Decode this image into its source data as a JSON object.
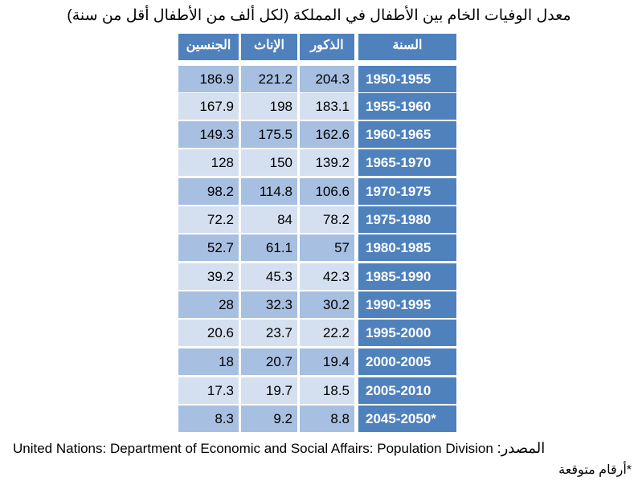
{
  "title": "معدل الوفيات الخام بين الأطفال في المملكة (لكل ألف من الأطفال أقل من سنة)",
  "headers": {
    "both": "الجنسين",
    "female": "الإناث",
    "male": "الذكور",
    "year": "السنة"
  },
  "rows": [
    {
      "both": "186.9",
      "female": "221.2",
      "male": "204.3",
      "year": "1950-1955"
    },
    {
      "both": "167.9",
      "female": "198",
      "male": "183.1",
      "year": "1955-1960"
    },
    {
      "both": "149.3",
      "female": "175.5",
      "male": "162.6",
      "year": "1960-1965"
    },
    {
      "both": "128",
      "female": "150",
      "male": "139.2",
      "year": "1965-1970"
    },
    {
      "both": "98.2",
      "female": "114.8",
      "male": "106.6",
      "year": "1970-1975"
    },
    {
      "both": "72.2",
      "female": "84",
      "male": "78.2",
      "year": "1975-1980"
    },
    {
      "both": "52.7",
      "female": "61.1",
      "male": "57",
      "year": "1980-1985"
    },
    {
      "both": "39.2",
      "female": "45.3",
      "male": "42.3",
      "year": "1985-1990"
    },
    {
      "both": "28",
      "female": "32.3",
      "male": "30.2",
      "year": "1990-1995"
    },
    {
      "both": "20.6",
      "female": "23.7",
      "male": "22.2",
      "year": "1995-2000"
    },
    {
      "both": "18",
      "female": "20.7",
      "male": "19.4",
      "year": "2000-2005"
    },
    {
      "both": "17.3",
      "female": "19.7",
      "male": "18.5",
      "year": "2005-2010"
    },
    {
      "both": "8.3",
      "female": "9.2",
      "male": "8.8",
      "year": "2045-2050*"
    }
  ],
  "source": {
    "text": "United Nations: Department of Economic and Social Affairs: Population Division",
    "label": "المصدر:"
  },
  "note": "*أرقام متوقعة",
  "colors": {
    "header_bg": "#4f81bd",
    "year_bg": "#4f81bd",
    "row_dark": "#a7bfe0",
    "row_light": "#d4e0f0"
  }
}
